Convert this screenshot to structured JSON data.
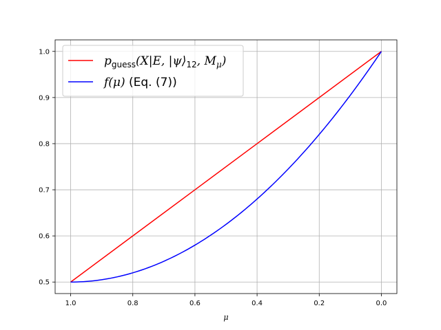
{
  "chart_data": {
    "type": "line",
    "title": "",
    "xlabel": "μ",
    "ylabel": "",
    "x_inverted": true,
    "xlim": [
      1.05,
      -0.05
    ],
    "ylim": [
      0.475,
      1.025
    ],
    "xticks": [
      1.0,
      0.8,
      0.6,
      0.4,
      0.2,
      0.0
    ],
    "xtick_labels": [
      "1.0",
      "0.8",
      "0.6",
      "0.4",
      "0.2",
      "0.0"
    ],
    "yticks": [
      0.5,
      0.6,
      0.7,
      0.8,
      0.9,
      1.0
    ],
    "ytick_labels": [
      "0.5",
      "0.6",
      "0.7",
      "0.8",
      "0.9",
      "1.0"
    ],
    "grid": true,
    "legend_position": "top-left",
    "series": [
      {
        "name": "p_guess(X|E,|ψ⟩12,Mμ)",
        "legend": {
          "main": "p",
          "sub": "guess",
          "body": "(X|E, |ψ⟩",
          "sub2": "12",
          "tail": ", M",
          "sub3": "μ",
          "end": ")"
        },
        "color": "#ff0000",
        "x": [
          1.0,
          0.8,
          0.6,
          0.4,
          0.2,
          0.0
        ],
        "y": [
          0.5,
          0.6,
          0.7,
          0.8,
          0.9,
          1.0
        ]
      },
      {
        "name": "f(μ) (Eq. (7))",
        "legend": {
          "math": "f(μ)",
          "text": " (Eq. (7))"
        },
        "color": "#0000ff",
        "x": [
          1.0,
          0.9,
          0.8,
          0.7,
          0.6,
          0.5,
          0.4,
          0.3,
          0.2,
          0.1,
          0.0
        ],
        "y": [
          0.5,
          0.505,
          0.52,
          0.545,
          0.58,
          0.625,
          0.68,
          0.745,
          0.82,
          0.905,
          1.0
        ]
      }
    ]
  }
}
